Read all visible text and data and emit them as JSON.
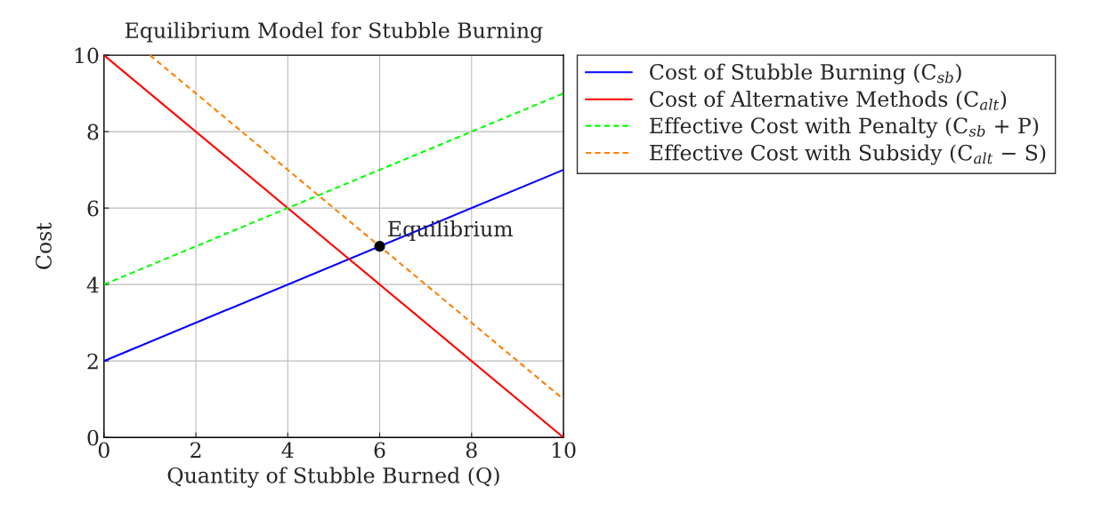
{
  "chart_data": {
    "type": "line",
    "title": "Equilibrium Model for Stubble Burning",
    "xlabel": "Quantity of Stubble Burned (Q)",
    "ylabel": "Cost",
    "series": [
      {
        "name": "Cost of Stubble Burning (C$_{sb}$)",
        "color": "#0000ff",
        "x": [
          0,
          10
        ],
        "values": [
          2,
          7
        ],
        "line_style": "solid"
      },
      {
        "name": "Cost of Alternative Methods (C$_{alt}$)",
        "color": "#ff0000",
        "x": [
          0,
          10
        ],
        "values": [
          10,
          0
        ],
        "line_style": "solid"
      },
      {
        "name": "Effective Cost with Penalty (C$_{sb}$ + P)",
        "color": "#00ff00",
        "x": [
          0,
          10
        ],
        "values": [
          4,
          9
        ],
        "line_style": "dashed"
      },
      {
        "name": "Effective Cost with Subsidy (C$_{alt}$ − S)",
        "color": "#ff8000",
        "x": [
          1,
          10
        ],
        "values": [
          10,
          1
        ],
        "line_style": "dashed"
      },
      {
        "type": "scatter",
        "color": "#000000",
        "x": [
          6
        ],
        "values": [
          5
        ],
        "marker": "circle"
      }
    ],
    "annotations": [
      {
        "text": "Equilibrium",
        "x": 6,
        "y": 5
      }
    ],
    "xlim": [
      0,
      10
    ],
    "ylim": [
      0,
      10
    ],
    "xticks": [
      0,
      2,
      4,
      6,
      8,
      10
    ],
    "yticks": [
      0,
      2,
      4,
      6,
      8,
      10
    ],
    "grid": true,
    "legend": "top right"
  }
}
